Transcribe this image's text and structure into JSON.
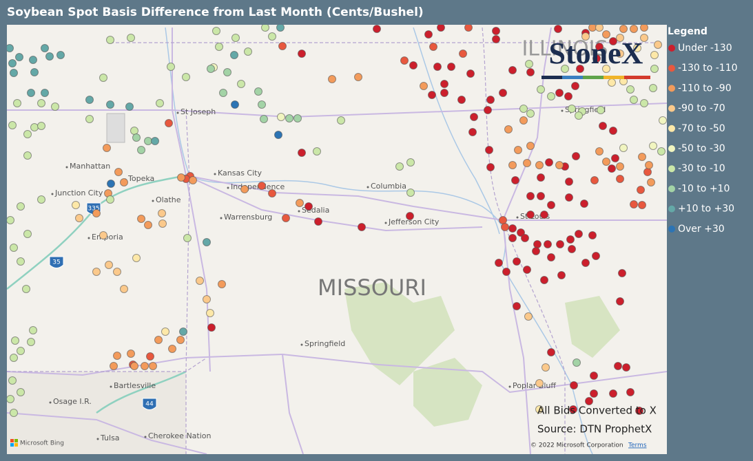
{
  "header": {
    "title": "Soybean Spot Basis Difference from Last Month (Cents/Bushel)"
  },
  "legend": {
    "title": "Legend",
    "items": [
      {
        "label": "Under -130",
        "color": "#cc1f2c"
      },
      {
        "label": "-130 to -110",
        "color": "#e8583e"
      },
      {
        "label": "-110 to -90",
        "color": "#f39b5b"
      },
      {
        "label": "-90 to -70",
        "color": "#fbc98b"
      },
      {
        "label": "-70 to -50",
        "color": "#fde8a8"
      },
      {
        "label": "-50 to -30",
        "color": "#f1f5c0"
      },
      {
        "label": "-30 to -10",
        "color": "#cbe7a8"
      },
      {
        "label": "-10 to +10",
        "color": "#a3d3a6"
      },
      {
        "label": "+10 to +30",
        "color": "#64a8a7"
      },
      {
        "label": "Over +30",
        "color": "#2c74b4"
      }
    ]
  },
  "map": {
    "region_label": "MISSOURI",
    "neighbor_label": "ILLINOIS",
    "places": [
      "St Joseph",
      "Manhattan",
      "Topeka",
      "Kansas City",
      "Independence",
      "Junction City",
      "Olathe",
      "Columbia",
      "Sedalia",
      "Warrensburg",
      "Jefferson City",
      "Emporia",
      "St Louis",
      "Springfield",
      "Springfield",
      "Bartlesville",
      "Osage I.R.",
      "Poplar Bluff",
      "Tulsa",
      "Cherokee Nation"
    ],
    "shields": [
      "335",
      "35",
      "44"
    ]
  },
  "logo": "StoneX",
  "notes": [
    "All Bids Converted to X",
    "Source: DTN ProphetX"
  ],
  "attribution": {
    "provider": "Microsoft Bing",
    "copyright": "© 2022 Microsoft Corporation",
    "terms": "Terms"
  }
}
